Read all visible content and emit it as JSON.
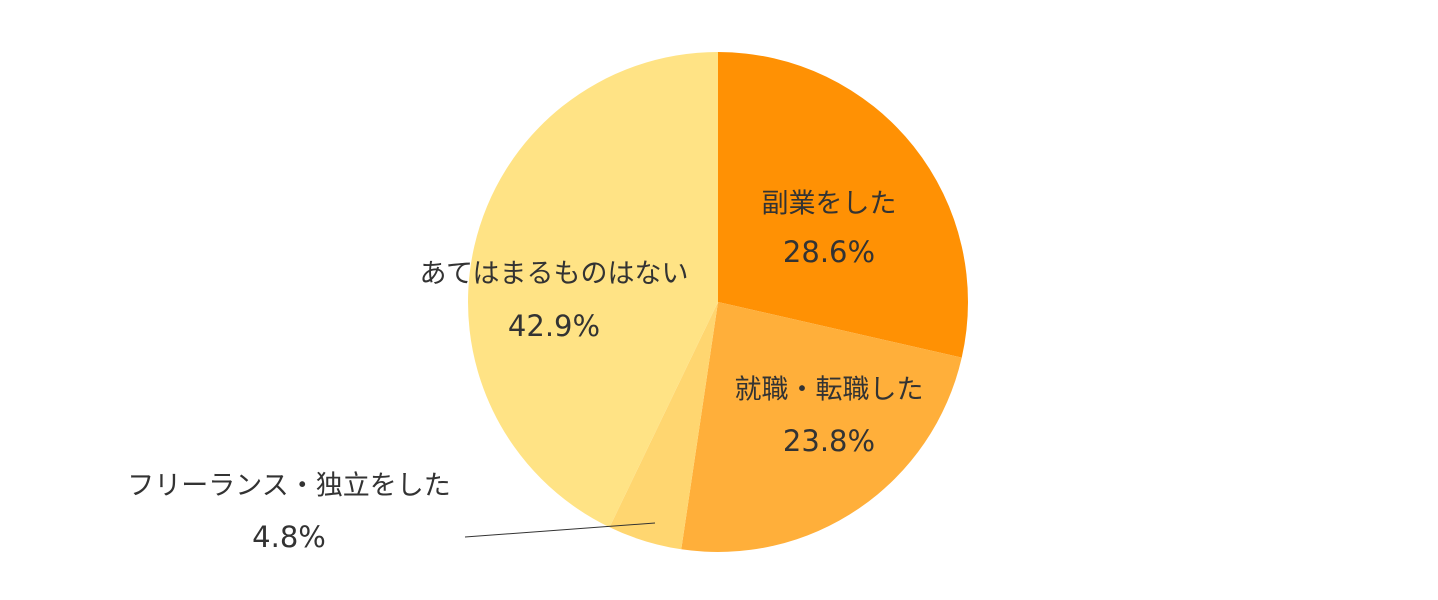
{
  "chart_data": {
    "type": "pie",
    "start_angle_deg": 0,
    "direction": "clockwise",
    "slices": [
      {
        "label": "副業をした",
        "value": 28.6,
        "value_label": "28.6%",
        "color": "#FF9104"
      },
      {
        "label": "就職・転職した",
        "value": 23.8,
        "value_label": "23.8%",
        "color": "#FFAF3A"
      },
      {
        "label": "フリーランス・独立をした",
        "value": 4.8,
        "value_label": "4.8%",
        "color": "#FFD670"
      },
      {
        "label": "あてはまるものはない",
        "value": 42.9,
        "value_label": "42.9%",
        "color": "#FFE385"
      }
    ],
    "label_color": "#333333",
    "leader_line_color": "#333333"
  }
}
